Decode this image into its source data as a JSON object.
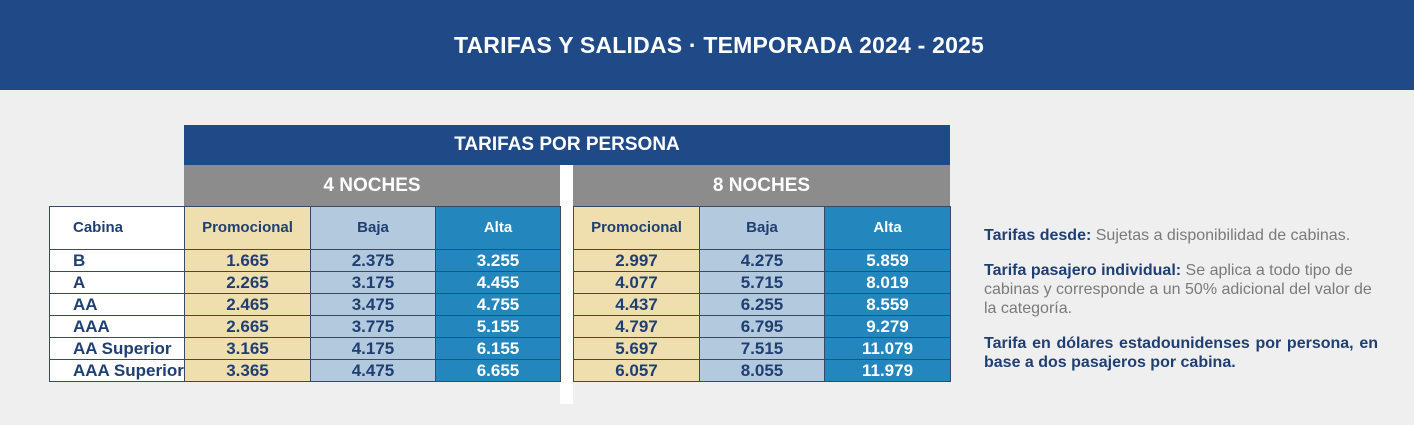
{
  "banner": {
    "title": "TARIFAS Y SALIDAS · TEMPORADA 2024 - 2025"
  },
  "table": {
    "main_header": "TARIFAS POR PERSONA",
    "group_4": "4 NOCHES",
    "group_8": "8 NOCHES",
    "cabin_header": "Cabina",
    "col_promo": "Promocional",
    "col_baja": "Baja",
    "col_alta": "Alta",
    "rows": [
      {
        "cabina": "B",
        "n4": [
          "1.665",
          "2.375",
          "3.255"
        ],
        "n8": [
          "2.997",
          "4.275",
          "5.859"
        ]
      },
      {
        "cabina": "A",
        "n4": [
          "2.265",
          "3.175",
          "4.455"
        ],
        "n8": [
          "4.077",
          "5.715",
          "8.019"
        ]
      },
      {
        "cabina": "AA",
        "n4": [
          "2.465",
          "3.475",
          "4.755"
        ],
        "n8": [
          "4.437",
          "6.255",
          "8.559"
        ]
      },
      {
        "cabina": "AAA",
        "n4": [
          "2.665",
          "3.775",
          "5.155"
        ],
        "n8": [
          "4.797",
          "6.795",
          "9.279"
        ]
      },
      {
        "cabina": "AA Superior",
        "n4": [
          "3.165",
          "4.175",
          "6.155"
        ],
        "n8": [
          "5.697",
          "7.515",
          "11.079"
        ]
      },
      {
        "cabina": "AAA Superior",
        "n4": [
          "3.365",
          "4.475",
          "6.655"
        ],
        "n8": [
          "6.057",
          "8.055",
          "11.979"
        ]
      }
    ]
  },
  "notes": {
    "n1_label": "Tarifas desde:",
    "n1_text": "Sujetas a disponibilidad de cabinas.",
    "n2_label": "Tarifa pasajero individual:",
    "n2_text": "Se aplica a todo tipo de cabinas y corresponde a un 50% adicional del valor de la categoría.",
    "n3_text": "Tarifa en dólares estadounidenses por persona, en base a dos pasajeros por cabina."
  },
  "colors": {
    "navy": "#1f4a87",
    "gray_header": "#8c8c8c",
    "promo": "#f0dfae",
    "baja": "#b3c9dd",
    "alta": "#2386bd"
  }
}
